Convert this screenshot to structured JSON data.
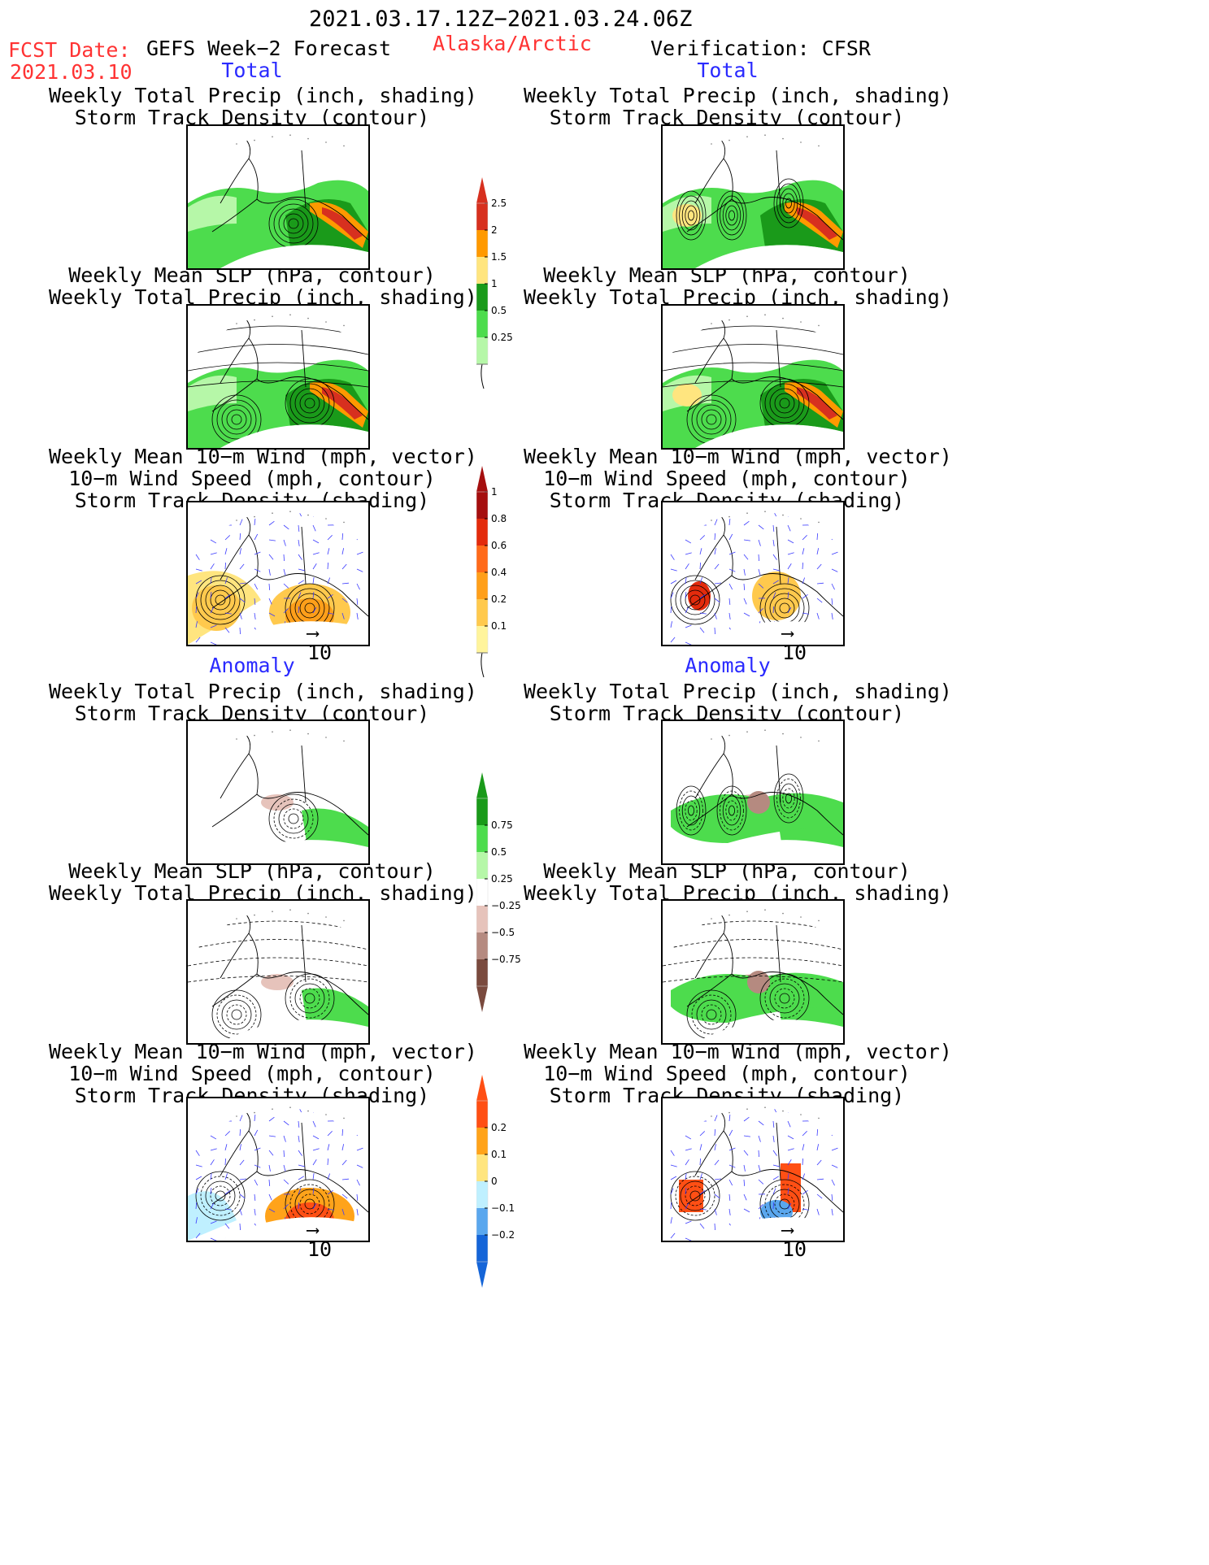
{
  "header": {
    "dates": "2021.03.17.12Z−2021.03.24.06Z",
    "region": "Alaska/Arctic",
    "fcst_label": "FCST Date:",
    "fcst_date": "2021.03.10",
    "model": "GEFS Week−2 Forecast",
    "verification": "Verification: CFSR"
  },
  "sections": {
    "total": "Total",
    "anomaly": "Anomaly"
  },
  "titles": {
    "precip_track": [
      "Weekly Total Precip (inch, shading)",
      "Storm Track Density (contour)"
    ],
    "slp_precip": [
      "Weekly Mean SLP (hPa, contour)",
      "Weekly Total Precip (inch, shading)"
    ],
    "wind": [
      "Weekly Mean 10−m Wind (mph, vector)",
      "10−m Wind Speed (mph, contour)",
      "Storm Track Density (shading)"
    ]
  },
  "vector_ref": "10",
  "colorbars": {
    "precip_total": {
      "labels": [
        "2.5",
        "2",
        "1.5",
        "1",
        "0.5",
        "0.25"
      ],
      "colors": [
        "#d7301f",
        "#ff9900",
        "#ffe57f",
        "#1a9a1a",
        "#4ddc4d",
        "#b6f7a8"
      ]
    },
    "track_total": {
      "labels": [
        "1",
        "0.8",
        "0.6",
        "0.4",
        "0.2",
        "0.1"
      ],
      "colors": [
        "#a50f0f",
        "#e32b0c",
        "#ff6a1a",
        "#ff9f1a",
        "#ffc94d",
        "#fff49c"
      ]
    },
    "precip_anom": {
      "labels": [
        "0.75",
        "0.5",
        "0.25",
        "−0.25",
        "−0.5",
        "−0.75"
      ],
      "colors": [
        "#1a9a1a",
        "#4ddc4d",
        "#b6f7a8",
        "#ffffff",
        "#e6c3bb",
        "#b58a80",
        "#7a4a3e"
      ]
    },
    "track_anom": {
      "labels": [
        "0.2",
        "0.1",
        "0",
        "−0.1",
        "−0.2"
      ],
      "colors": [
        "#ff4f14",
        "#ffa31a",
        "#ffe57f",
        "#bff0ff",
        "#5aa7ee",
        "#1565d8"
      ]
    }
  }
}
